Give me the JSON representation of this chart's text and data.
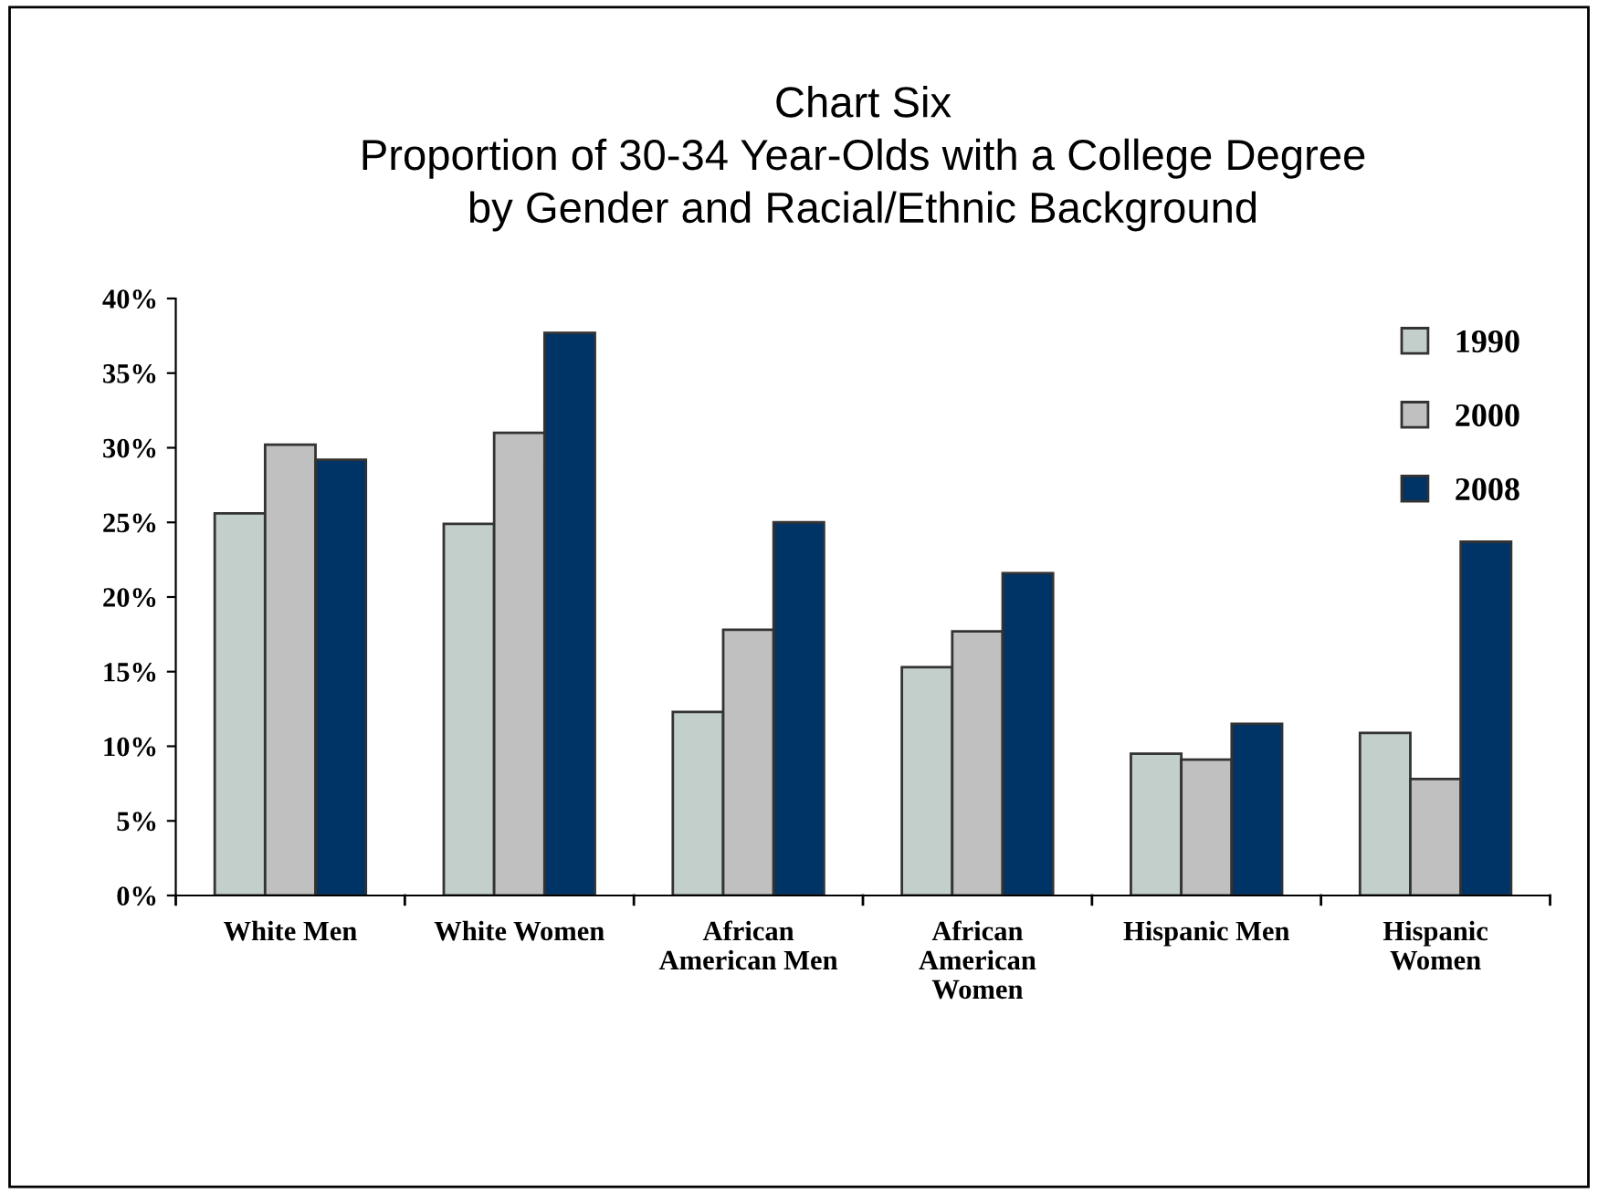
{
  "chart_data": {
    "type": "bar",
    "title": "Chart Six\nProportion of 30-34 Year-Olds with a College Degree\nby Gender and Racial/Ethnic Background",
    "categories": [
      "White Men",
      "White Women",
      "African\nAmerican Men",
      "African\nAmerican\nWomen",
      "Hispanic Men",
      "Hispanic\nWomen"
    ],
    "series": [
      {
        "name": "1990",
        "color": "#c3cfca",
        "values": [
          25.6,
          24.9,
          12.3,
          15.3,
          9.5,
          10.9
        ]
      },
      {
        "name": "2000",
        "color": "#c0c0c0",
        "values": [
          30.2,
          31.0,
          17.8,
          17.7,
          9.1,
          7.8
        ]
      },
      {
        "name": "2008",
        "color": "#003366",
        "values": [
          29.2,
          37.7,
          25.0,
          21.6,
          11.5,
          23.7
        ]
      }
    ],
    "ylim": [
      0,
      40
    ],
    "yticks": [
      {
        "value": 0,
        "label": "0%"
      },
      {
        "value": 5,
        "label": "5%"
      },
      {
        "value": 10,
        "label": "10%"
      },
      {
        "value": 15,
        "label": "15%"
      },
      {
        "value": 20,
        "label": "20%"
      },
      {
        "value": 25,
        "label": "25%"
      },
      {
        "value": 30,
        "label": "30%"
      },
      {
        "value": 35,
        "label": "35%"
      },
      {
        "value": 40,
        "label": "40%"
      }
    ],
    "grid": false,
    "legend": "top right"
  }
}
